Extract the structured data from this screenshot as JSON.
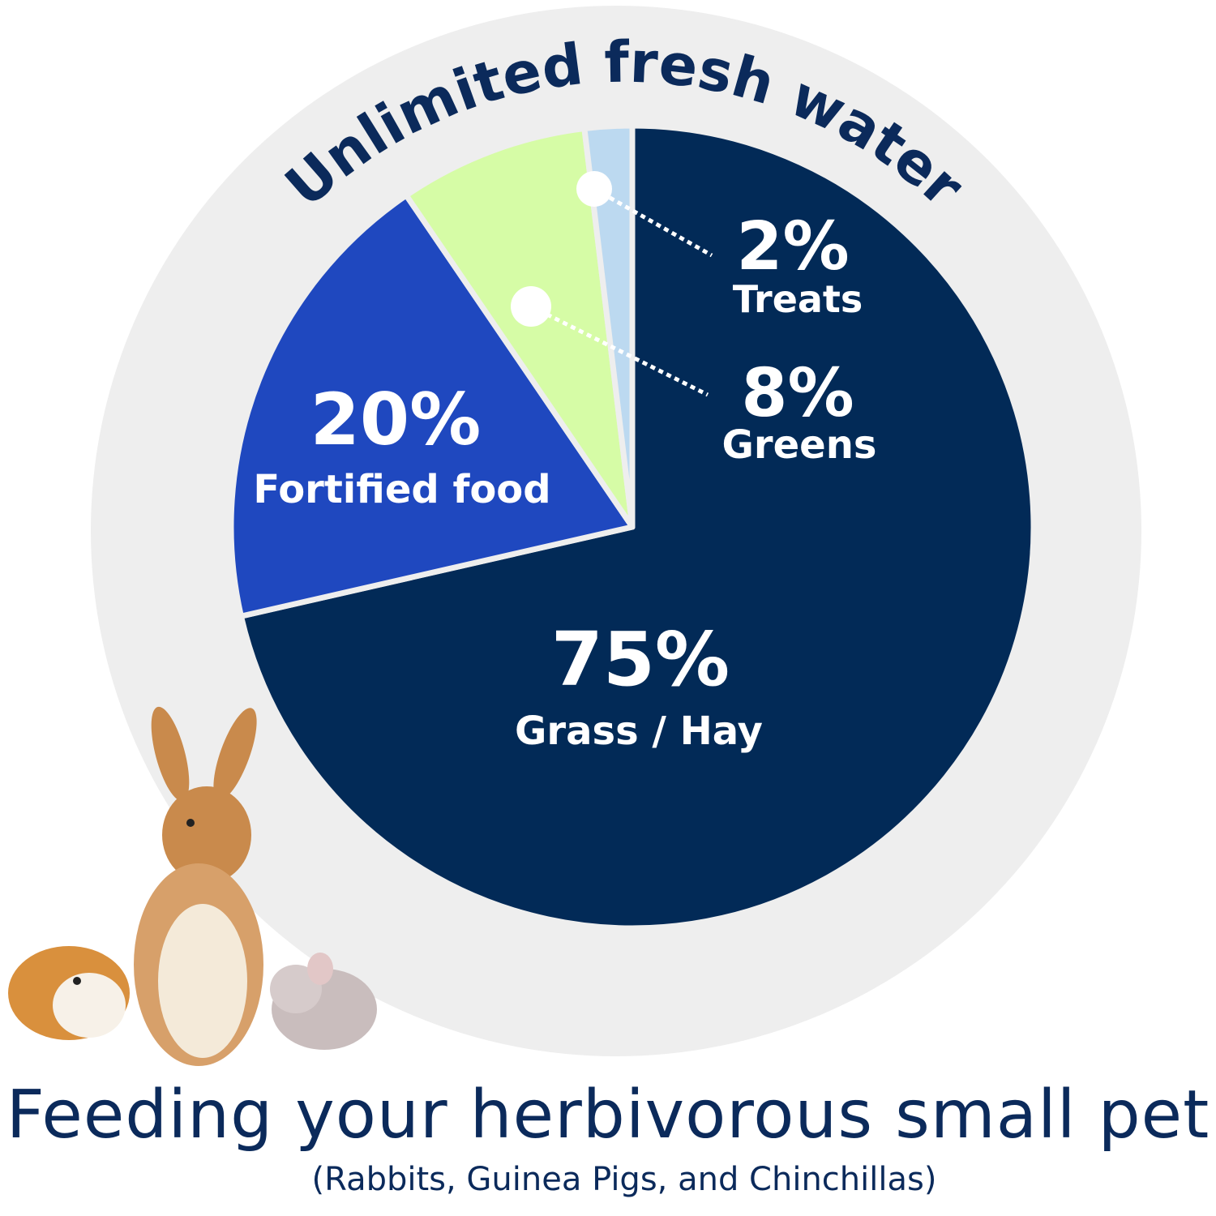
{
  "colors": {
    "background_ring": "#eeeeee",
    "text_dark": "#0b2a5b",
    "label_text": "#ffffff"
  },
  "chart_data": {
    "type": "pie",
    "ring_label": "Unlimited fresh water",
    "start": "top",
    "direction": "clockwise",
    "slices": [
      {
        "pct_label": "75%",
        "name": "Grass / Hay",
        "value": 75,
        "color": "#022a57"
      },
      {
        "pct_label": "20%",
        "name": "Fortified food",
        "value": 20,
        "color": "#1f48bf"
      },
      {
        "pct_label": "8%",
        "name": "Greens",
        "value": 8,
        "color": "#d6fca6"
      },
      {
        "pct_label": "2%",
        "name": "Treats",
        "value": 2,
        "color": "#bcd9f0"
      }
    ]
  },
  "footer": {
    "title": "Feeding your herbivorous small pet",
    "subtitle": "(Rabbits, Guinea Pigs, and Chinchillas)"
  },
  "illustration": {
    "subjects": [
      "guinea pig",
      "rabbit",
      "chinchilla"
    ]
  }
}
